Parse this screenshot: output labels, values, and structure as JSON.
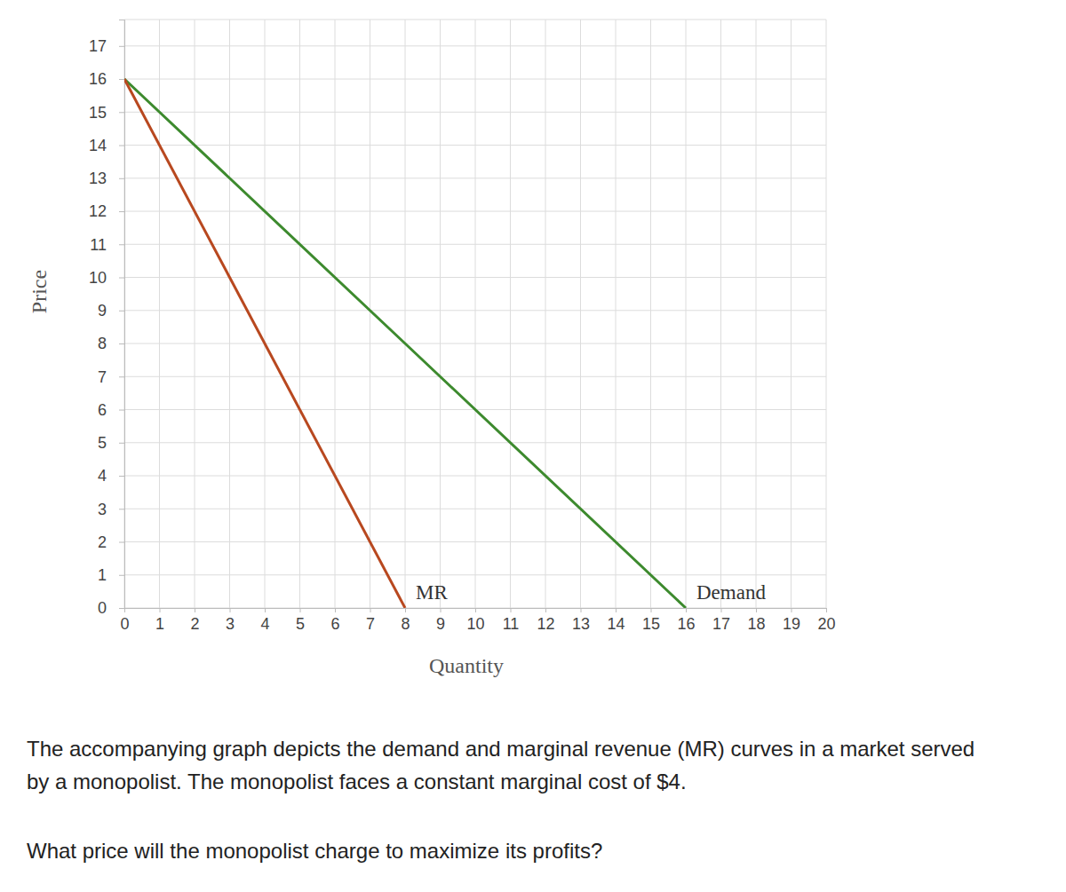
{
  "chart_data": {
    "type": "line",
    "xlabel": "Quantity",
    "ylabel": "Price",
    "x": [
      0,
      8,
      16
    ],
    "series": [
      {
        "name": "Demand",
        "color": "#3d8a2e",
        "values": [
          16,
          8,
          0
        ]
      },
      {
        "name": "MR",
        "color": "#b8481f",
        "values": [
          16,
          0,
          null
        ]
      }
    ],
    "xlim": [
      0,
      20
    ],
    "xticks": [
      0,
      1,
      2,
      3,
      4,
      5,
      6,
      7,
      8,
      9,
      10,
      11,
      12,
      13,
      14,
      15,
      16,
      17,
      18,
      19,
      20
    ],
    "ylim": [
      0,
      17.8
    ],
    "yticks": [
      0,
      1,
      2,
      3,
      4,
      5,
      6,
      7,
      8,
      9,
      10,
      11,
      12,
      13,
      14,
      15,
      16,
      17
    ],
    "grid": true
  },
  "text": {
    "paragraphs": [
      "The accompanying graph depicts the demand and marginal revenue (MR) curves in a market served by a monopolist. The monopolist faces a constant marginal cost of $4.",
      "What price will the monopolist charge to maximize its profits?"
    ]
  }
}
